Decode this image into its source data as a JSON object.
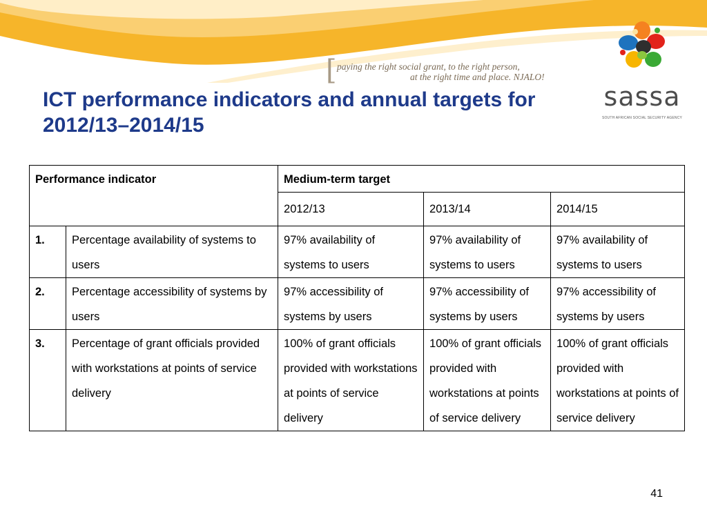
{
  "tagline": {
    "bracket": "[",
    "line1": "paying the right social grant, to the right person,",
    "line2": "at the right time and place. NJALO!"
  },
  "logo": {
    "wordmark": "sassa",
    "subtitle": "SOUTH AFRICAN SOCIAL SECURITY AGENCY"
  },
  "slide": {
    "title_line1": "ICT performance indicators and annual targets for",
    "title_line2": "2012/13–2014/15",
    "page_number": "41"
  },
  "table": {
    "header_indicator": "Performance indicator",
    "header_target": "Medium-term target",
    "years": [
      "2012/13",
      "2013/14",
      "2014/15"
    ],
    "rows": [
      {
        "num": "1.",
        "indicator": "Percentage availability of systems to users",
        "t2012": "97% availability of systems to users",
        "t2013": "97% availability of systems to users",
        "t2014": "97% availability of systems to users"
      },
      {
        "num": "2.",
        "indicator": "Percentage accessibility of systems by users",
        "t2012": "97% accessibility of systems by users",
        "t2013": "97% accessibility of systems by users",
        "t2014": "97% accessibility of systems by users"
      },
      {
        "num": "3.",
        "indicator": "Percentage of grant officials provided with workstations at points of service delivery",
        "t2012": "100% of grant officials provided with workstations at points of service delivery",
        "t2013": "100% of grant officials provided with workstations at points of service delivery",
        "t2014": "100% of grant officials provided with workstations at points of service delivery"
      }
    ]
  },
  "colors": {
    "title": "#1e3a8a",
    "swoosh_dark": "#f2a416",
    "swoosh_light": "#fde3a0"
  }
}
